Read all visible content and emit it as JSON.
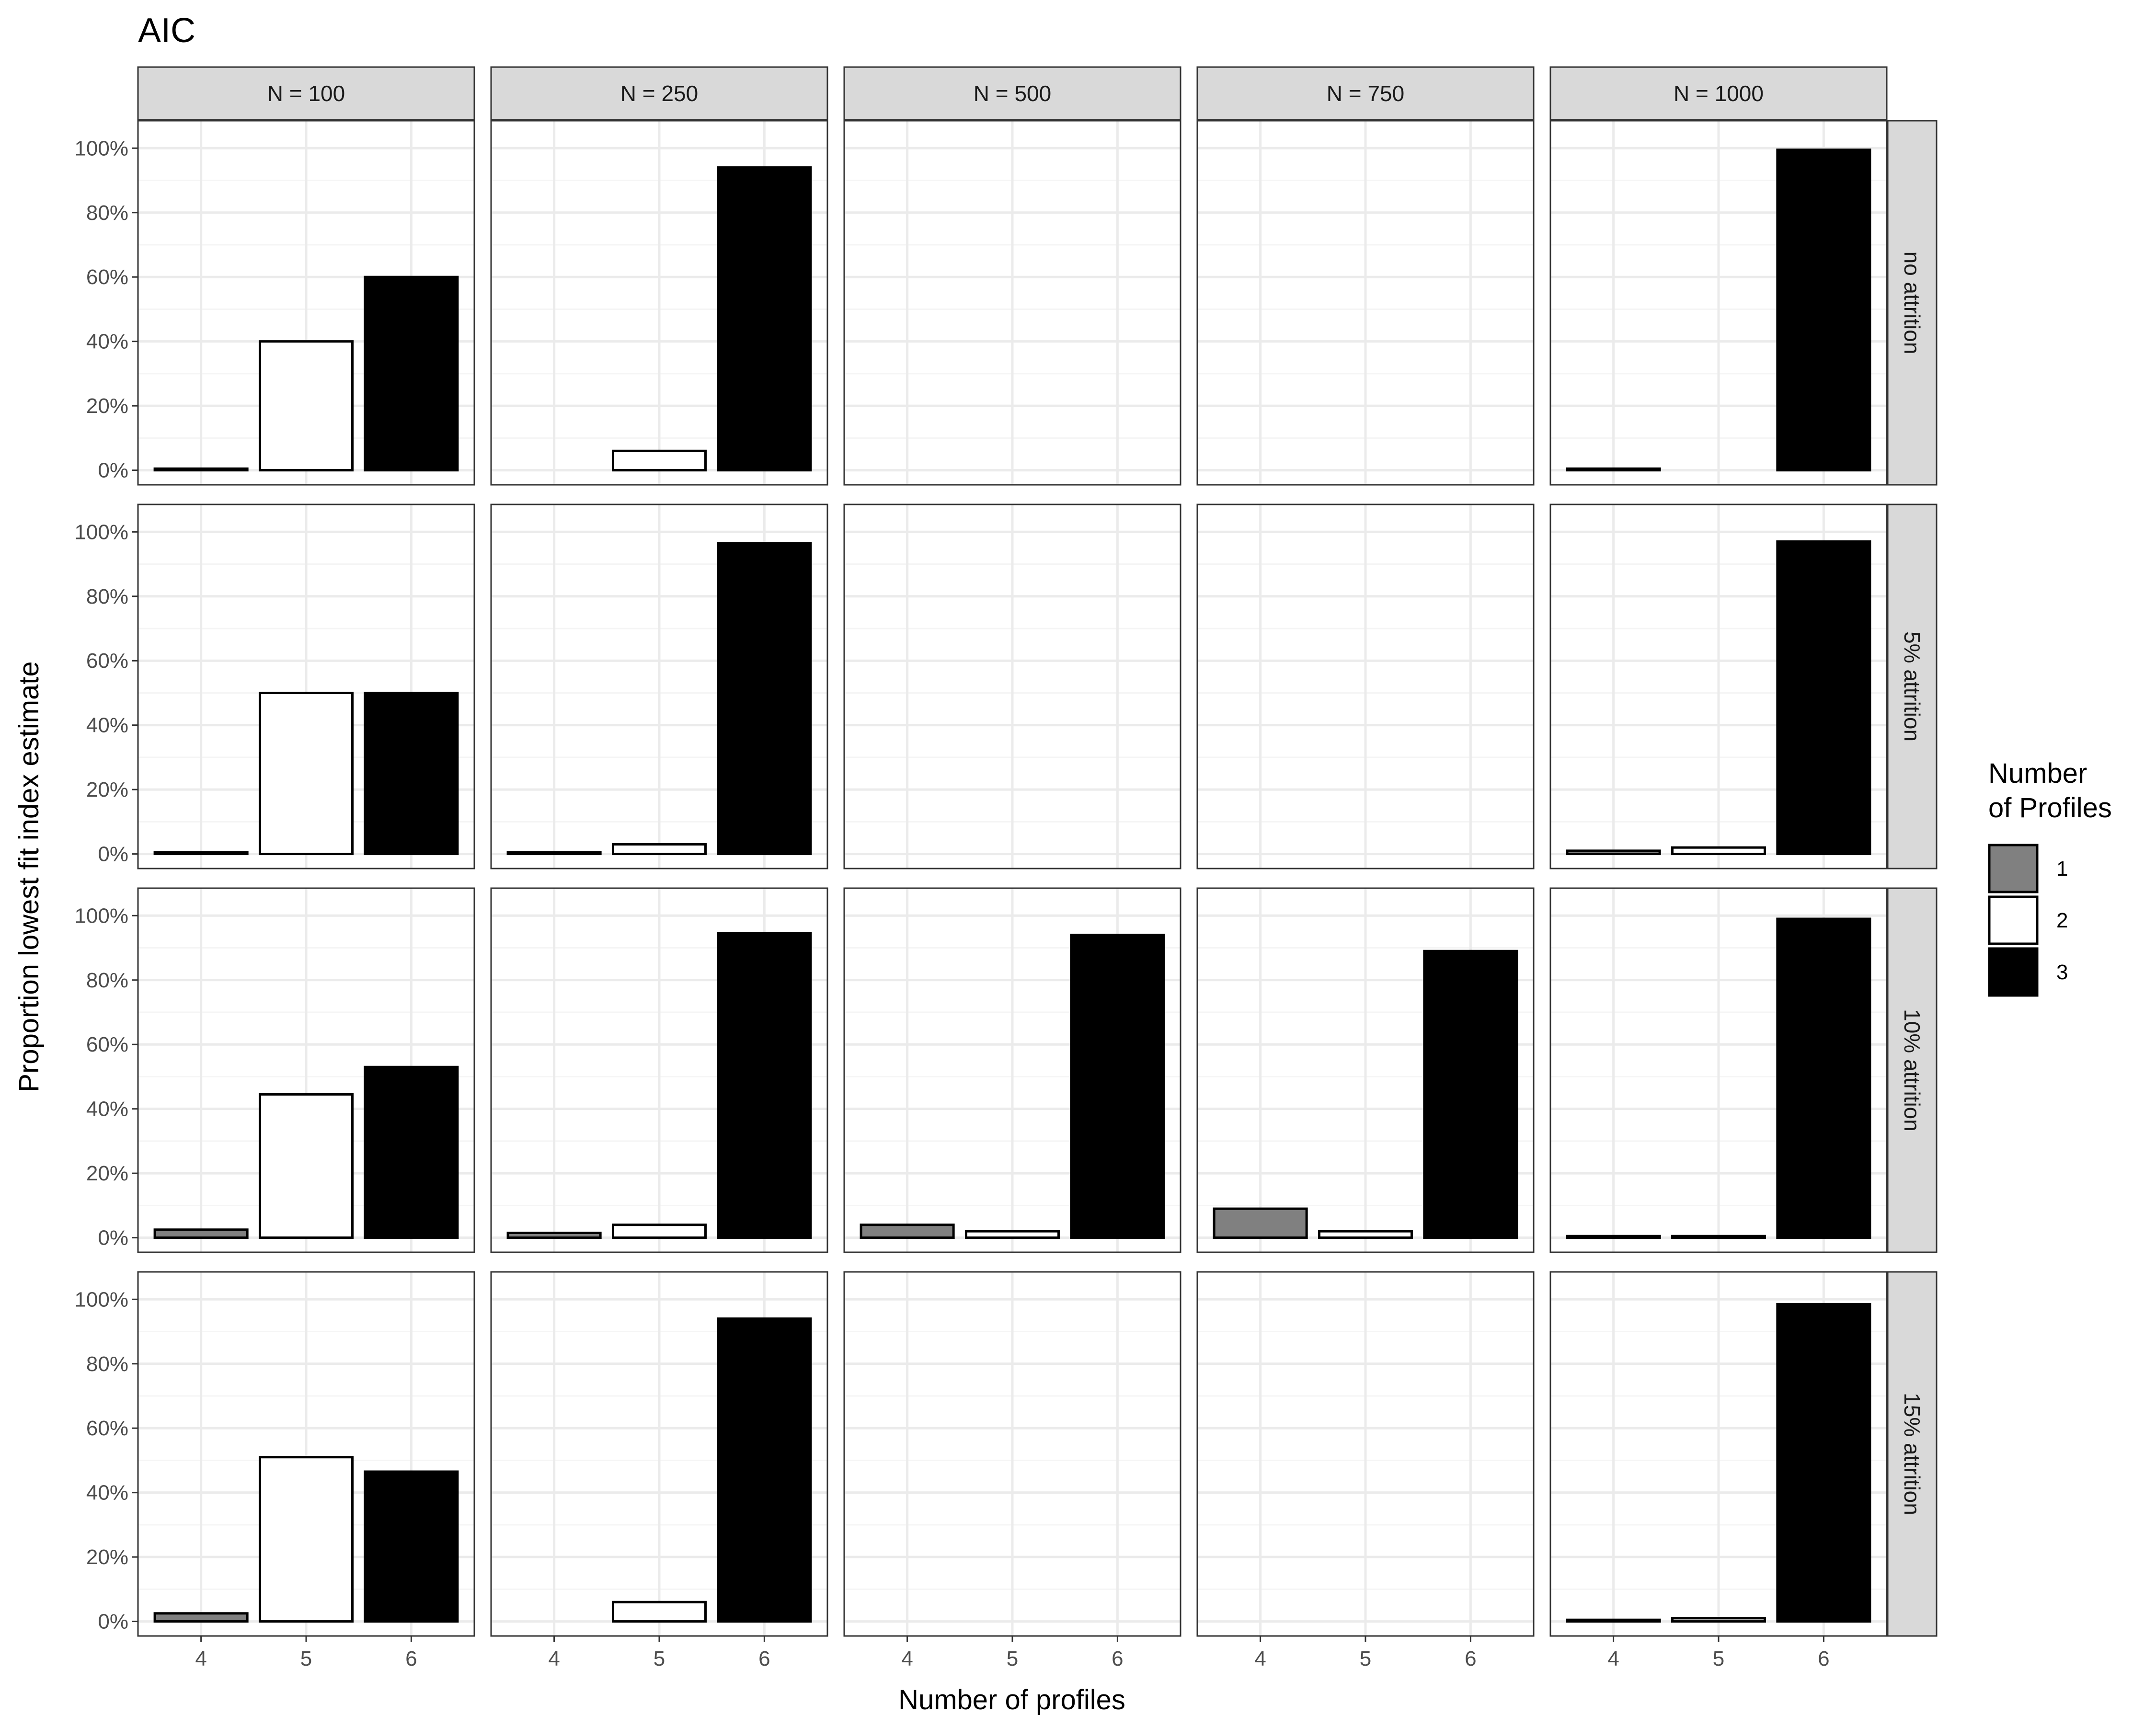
{
  "chart_data": {
    "type": "bar",
    "title": "AIC",
    "xlabel": "Number of profiles",
    "ylabel": "Proportion lowest fit index estimate",
    "x_categories": [
      "4",
      "5",
      "6"
    ],
    "y_ticks": [
      "0%",
      "20%",
      "40%",
      "60%",
      "80%",
      "100%"
    ],
    "ylim": [
      0,
      1.04
    ],
    "grid": true,
    "legend": {
      "title_line1": "Number",
      "title_line2": "of Profiles",
      "position": "right",
      "entries": [
        {
          "label": "1",
          "color": "#808080"
        },
        {
          "label": "2",
          "color": "#ffffff"
        },
        {
          "label": "3",
          "color": "#000000"
        }
      ]
    },
    "columns": [
      "N = 100",
      "N = 250",
      "N = 500",
      "N = 750",
      "N = 1000"
    ],
    "rows": [
      "no attrition",
      "5% attrition",
      "10% attrition",
      "15% attrition"
    ],
    "panels": [
      [
        {
          "values": [
            0.005,
            0.4,
            0.6
          ]
        },
        {
          "values": [
            null,
            0.06,
            0.94
          ]
        },
        {
          "values": [
            null,
            null,
            null
          ]
        },
        {
          "values": [
            null,
            null,
            null
          ]
        },
        {
          "values": [
            0.005,
            null,
            0.995
          ]
        }
      ],
      [
        {
          "values": [
            0.005,
            0.5,
            0.5
          ]
        },
        {
          "values": [
            0.005,
            0.03,
            0.965
          ]
        },
        {
          "values": [
            null,
            null,
            null
          ]
        },
        {
          "values": [
            null,
            null,
            null
          ]
        },
        {
          "values": [
            0.01,
            0.02,
            0.97
          ]
        }
      ],
      [
        {
          "values": [
            0.025,
            0.445,
            0.53
          ]
        },
        {
          "values": [
            0.015,
            0.04,
            0.945
          ]
        },
        {
          "values": [
            0.04,
            0.02,
            0.94
          ]
        },
        {
          "values": [
            0.09,
            0.02,
            0.89
          ]
        },
        {
          "values": [
            0.005,
            0.005,
            0.99
          ]
        }
      ],
      [
        {
          "values": [
            0.025,
            0.51,
            0.465
          ]
        },
        {
          "values": [
            null,
            0.06,
            0.94
          ]
        },
        {
          "values": [
            null,
            null,
            null
          ]
        },
        {
          "values": [
            null,
            null,
            null
          ]
        },
        {
          "values": [
            0.005,
            0.01,
            0.985
          ]
        }
      ]
    ],
    "colors": {
      "strip_fill": "#d9d9d9",
      "grid_major": "#ebebeb",
      "grid_minor": "#f5f5f5",
      "panel_border": "#333333"
    }
  }
}
